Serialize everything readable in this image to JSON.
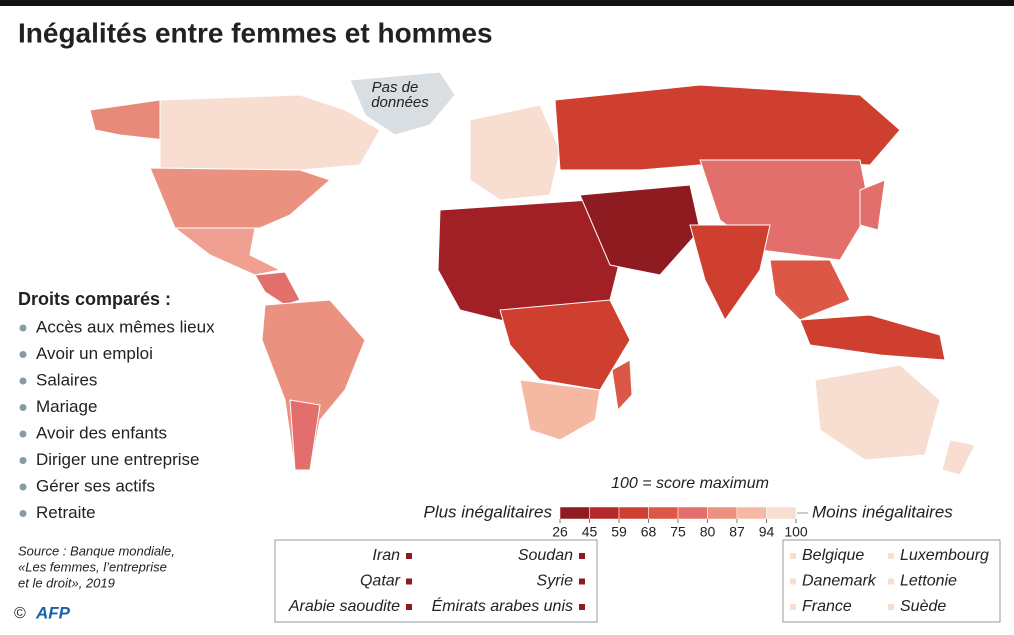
{
  "title": "Inégalités entre femmes et hommes",
  "map": {
    "no_data_label": [
      "Pas de",
      "données"
    ]
  },
  "rights": {
    "heading": "Droits comparés :",
    "items": [
      "Accès aux mêmes lieux",
      "Avoir un emploi",
      "Salaires",
      "Mariage",
      "Avoir des enfants",
      "Diriger une entreprise",
      "Gérer ses actifs",
      "Retraite"
    ]
  },
  "scale": {
    "note": "100 = score maximum",
    "low_label": "Plus inégalitaires",
    "high_label": "Moins inégalitaires",
    "ticks": [
      26,
      45,
      59,
      68,
      75,
      80,
      87,
      94,
      100
    ],
    "colors": [
      "#8e1b1f",
      "#b5282b",
      "#cf3f30",
      "#dc5745",
      "#e26f6c",
      "#eb917f",
      "#f4b8a3",
      "#f8ddd1"
    ]
  },
  "lowest": [
    "Iran",
    "Qatar",
    "Arabie saoudite",
    "Soudan",
    "Syrie",
    "Émirats arabes unis"
  ],
  "highest": [
    "Belgique",
    "Danemark",
    "France",
    "Luxembourg",
    "Lettonie",
    "Suède"
  ],
  "source": [
    "Source : Banque mondiale,",
    "«Les femmes, l’entreprise",
    "et le droit», 2019"
  ],
  "credit": {
    "symbol": "©",
    "agency": "AFP"
  }
}
